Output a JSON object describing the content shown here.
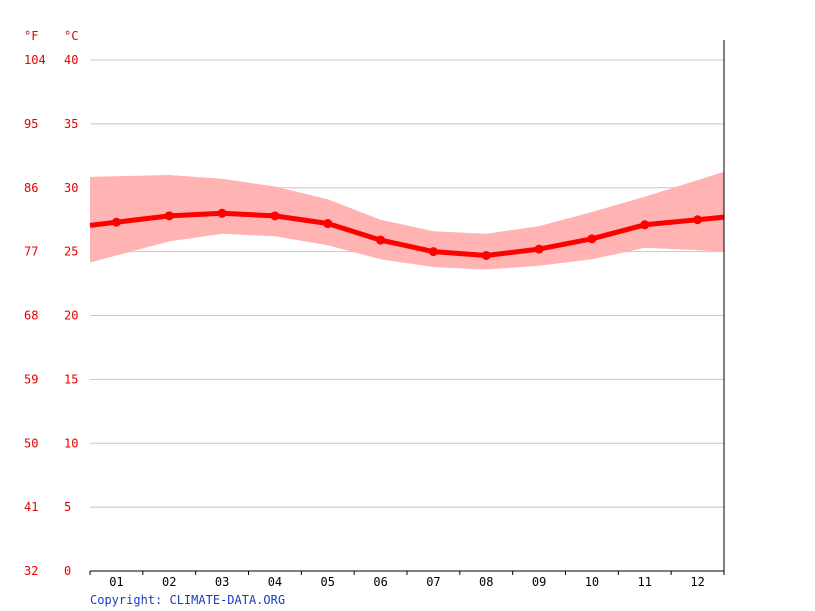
{
  "chart_data": {
    "type": "line",
    "units": {
      "fahrenheit": "°F",
      "celsius": "°C"
    },
    "y_ticks_f": [
      "104",
      "95",
      "86",
      "77",
      "68",
      "59",
      "50",
      "41",
      "32"
    ],
    "y_ticks_c": [
      "40",
      "35",
      "30",
      "25",
      "20",
      "15",
      "10",
      "5",
      "0"
    ],
    "ylim": [
      0,
      40
    ],
    "categories": [
      "01",
      "02",
      "03",
      "04",
      "05",
      "06",
      "07",
      "08",
      "09",
      "10",
      "11",
      "12"
    ],
    "series": [
      {
        "values": [
          27.3,
          27.8,
          28.0,
          27.8,
          27.2,
          25.9,
          25.0,
          24.7,
          25.2,
          26.0,
          27.1,
          27.5
        ]
      }
    ],
    "band_max": [
      30.9,
      31.0,
      30.7,
      30.1,
      29.1,
      27.5,
      26.6,
      26.4,
      27.0,
      28.1,
      29.3,
      30.6
    ],
    "band_min": [
      24.7,
      25.8,
      26.4,
      26.2,
      25.5,
      24.4,
      23.8,
      23.6,
      23.9,
      24.4,
      25.3,
      25.1
    ],
    "grid": true,
    "colors": {
      "line": "#ff0000",
      "band": "#ffb3b3",
      "grid": "#c8c8c8",
      "tick_text": "#e60000"
    }
  },
  "footer": {
    "copyright": "Copyright: CLIMATE-DATA.ORG"
  }
}
